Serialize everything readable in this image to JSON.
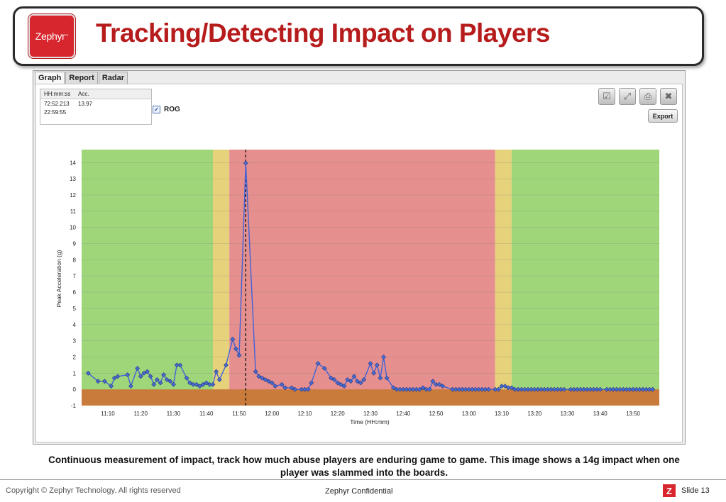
{
  "header": {
    "logo_text": "Zephyr",
    "logo_tm": "™",
    "title": "Tracking/Detecting Impact on Players"
  },
  "tabs": [
    {
      "label": "Graph",
      "active": true
    },
    {
      "label": "Report",
      "active": false
    },
    {
      "label": "Radar",
      "active": false
    }
  ],
  "readout": {
    "col_time": "HH:mm:ss",
    "col_acc": "Acc.",
    "rows": [
      {
        "time": "72:52.213",
        "acc": "13.97"
      },
      {
        "time": "22:59:55",
        "acc": ""
      }
    ]
  },
  "rog": {
    "label": "ROG",
    "checked": true
  },
  "toolbar": {
    "icons": [
      "check-icon",
      "expand-icon",
      "print-icon",
      "close-icon"
    ],
    "export_label": "Export"
  },
  "chart_data": {
    "type": "line",
    "xlabel": "Time (HH:mm)",
    "ylabel": "Peak Acceleration (g)",
    "x_range": [
      "11:02",
      "13:58"
    ],
    "ylim": [
      -1,
      14.8
    ],
    "x_ticks": [
      "11:10",
      "11:20",
      "11:30",
      "11:40",
      "11:50",
      "12:00",
      "12:10",
      "12:20",
      "12:30",
      "12:40",
      "12:50",
      "13:00",
      "13:10",
      "13:20",
      "13:30",
      "13:40",
      "13:50"
    ],
    "y_ticks": [
      -1,
      0,
      1,
      2,
      3,
      4,
      5,
      6,
      7,
      8,
      9,
      10,
      11,
      12,
      13,
      14
    ],
    "marker_time": "11:52",
    "bands": [
      {
        "from": "11:02",
        "to": "11:42",
        "color": "#9fd67a"
      },
      {
        "from": "11:42",
        "to": "11:47",
        "color": "#e6d27a"
      },
      {
        "from": "11:47",
        "to": "13:08",
        "color": "#e68f8f"
      },
      {
        "from": "13:08",
        "to": "13:13",
        "color": "#e6d27a"
      },
      {
        "from": "13:13",
        "to": "13:58",
        "color": "#9fd67a"
      }
    ],
    "baseline_band": {
      "from": -1,
      "to": 0,
      "color": "#c97b3c"
    },
    "line_color": "#3f63d8",
    "marker_color": "#4a6bd0",
    "series": [
      {
        "points": [
          [
            "11:04",
            1.0
          ],
          [
            "11:07",
            0.5
          ],
          [
            "11:09",
            0.5
          ],
          [
            "11:11",
            0.2
          ],
          [
            "11:12",
            0.7
          ],
          [
            "11:13",
            0.8
          ],
          [
            "11:16",
            0.9
          ],
          [
            "11:17",
            0.2
          ],
          [
            "11:19",
            1.3
          ],
          [
            "11:20",
            0.8
          ],
          [
            "11:21",
            1.0
          ],
          [
            "11:22",
            1.1
          ],
          [
            "11:23",
            0.8
          ],
          [
            "11:24",
            0.3
          ],
          [
            "11:25",
            0.6
          ],
          [
            "11:26",
            0.4
          ],
          [
            "11:27",
            0.9
          ],
          [
            "11:28",
            0.6
          ],
          [
            "11:29",
            0.5
          ],
          [
            "11:30",
            0.3
          ],
          [
            "11:31",
            1.5
          ],
          [
            "11:32",
            1.5
          ],
          [
            "11:34",
            0.7
          ],
          [
            "11:35",
            0.4
          ],
          [
            "11:36",
            0.3
          ],
          [
            "11:37",
            0.3
          ],
          [
            "11:38",
            0.2
          ],
          [
            "11:39",
            0.3
          ],
          [
            "11:40",
            0.4
          ],
          [
            "11:41",
            0.3
          ],
          [
            "11:42",
            0.3
          ],
          [
            "11:43",
            1.1
          ],
          [
            "11:44",
            0.6
          ],
          [
            "11:46",
            1.5
          ],
          [
            "11:48",
            3.1
          ],
          [
            "11:49",
            2.5
          ],
          [
            "11:50",
            2.1
          ],
          [
            "11:52",
            13.97
          ],
          [
            "11:55",
            1.1
          ],
          [
            "11:56",
            0.8
          ],
          [
            "11:57",
            0.7
          ],
          [
            "11:58",
            0.6
          ],
          [
            "11:59",
            0.5
          ],
          [
            "12:00",
            0.4
          ],
          [
            "12:01",
            0.2
          ],
          [
            "12:03",
            0.3
          ],
          [
            "12:04",
            0.1
          ],
          [
            "12:06",
            0.1
          ],
          [
            "12:07",
            0.0
          ],
          [
            "12:09",
            0.0
          ],
          [
            "12:10",
            0.0
          ],
          [
            "12:11",
            0.0
          ],
          [
            "12:12",
            0.4
          ],
          [
            "12:14",
            1.6
          ],
          [
            "12:16",
            1.3
          ],
          [
            "12:18",
            0.7
          ],
          [
            "12:19",
            0.6
          ],
          [
            "12:20",
            0.4
          ],
          [
            "12:21",
            0.3
          ],
          [
            "12:22",
            0.2
          ],
          [
            "12:23",
            0.6
          ],
          [
            "12:24",
            0.5
          ],
          [
            "12:25",
            0.8
          ],
          [
            "12:26",
            0.5
          ],
          [
            "12:27",
            0.4
          ],
          [
            "12:28",
            0.6
          ],
          [
            "12:30",
            1.6
          ],
          [
            "12:31",
            1.0
          ],
          [
            "12:32",
            1.5
          ],
          [
            "12:33",
            0.7
          ],
          [
            "12:34",
            2.0
          ],
          [
            "12:35",
            0.7
          ],
          [
            "12:37",
            0.1
          ],
          [
            "12:38",
            0.0
          ],
          [
            "12:39",
            0.0
          ],
          [
            "12:40",
            0.0
          ],
          [
            "12:41",
            0.0
          ],
          [
            "12:42",
            0.0
          ],
          [
            "12:43",
            0.0
          ],
          [
            "12:44",
            0.0
          ],
          [
            "12:45",
            0.0
          ],
          [
            "12:46",
            0.1
          ],
          [
            "12:47",
            0.0
          ],
          [
            "12:48",
            0.0
          ],
          [
            "12:49",
            0.5
          ],
          [
            "12:50",
            0.3
          ],
          [
            "12:51",
            0.3
          ],
          [
            "12:52",
            0.2
          ],
          [
            "12:55",
            0.0
          ],
          [
            "12:56",
            0.0
          ],
          [
            "12:57",
            0.0
          ],
          [
            "12:58",
            0.0
          ],
          [
            "12:59",
            0.0
          ],
          [
            "13:00",
            0.0
          ],
          [
            "13:01",
            0.0
          ],
          [
            "13:02",
            0.0
          ],
          [
            "13:03",
            0.0
          ],
          [
            "13:04",
            0.0
          ],
          [
            "13:05",
            0.0
          ],
          [
            "13:06",
            0.0
          ],
          [
            "13:08",
            0.0
          ],
          [
            "13:09",
            0.0
          ],
          [
            "13:10",
            0.2
          ],
          [
            "13:11",
            0.2
          ],
          [
            "13:12",
            0.1
          ],
          [
            "13:13",
            0.1
          ],
          [
            "13:14",
            0.0
          ],
          [
            "13:15",
            0.0
          ],
          [
            "13:16",
            0.0
          ],
          [
            "13:17",
            0.0
          ],
          [
            "13:18",
            0.0
          ],
          [
            "13:19",
            0.0
          ],
          [
            "13:20",
            0.0
          ],
          [
            "13:21",
            0.0
          ],
          [
            "13:22",
            0.0
          ],
          [
            "13:23",
            0.0
          ],
          [
            "13:24",
            0.0
          ],
          [
            "13:25",
            0.0
          ],
          [
            "13:26",
            0.0
          ],
          [
            "13:27",
            0.0
          ],
          [
            "13:28",
            0.0
          ],
          [
            "13:29",
            0.0
          ],
          [
            "13:31",
            0.0
          ],
          [
            "13:32",
            0.0
          ],
          [
            "13:33",
            0.0
          ],
          [
            "13:34",
            0.0
          ],
          [
            "13:35",
            0.0
          ],
          [
            "13:36",
            0.0
          ],
          [
            "13:37",
            0.0
          ],
          [
            "13:38",
            0.0
          ],
          [
            "13:39",
            0.0
          ],
          [
            "13:40",
            0.0
          ],
          [
            "13:42",
            0.0
          ],
          [
            "13:43",
            0.0
          ],
          [
            "13:44",
            0.0
          ],
          [
            "13:45",
            0.0
          ],
          [
            "13:46",
            0.0
          ],
          [
            "13:47",
            0.0
          ],
          [
            "13:48",
            0.0
          ],
          [
            "13:49",
            0.0
          ],
          [
            "13:50",
            0.0
          ],
          [
            "13:51",
            0.0
          ],
          [
            "13:52",
            0.0
          ],
          [
            "13:53",
            0.0
          ],
          [
            "13:54",
            0.0
          ],
          [
            "13:55",
            0.0
          ],
          [
            "13:56",
            0.0
          ]
        ]
      }
    ]
  },
  "caption": "Continuous measurement of impact, track how much abuse players are enduring game to game.  This image shows a 14g impact when one player was slammed into the boards.",
  "footer": {
    "copyright": "Copyright © Zephyr Technology.  All rights reserved",
    "confidential": "Zephyr Confidential",
    "z_logo": "Z",
    "slide": "Slide 13"
  }
}
